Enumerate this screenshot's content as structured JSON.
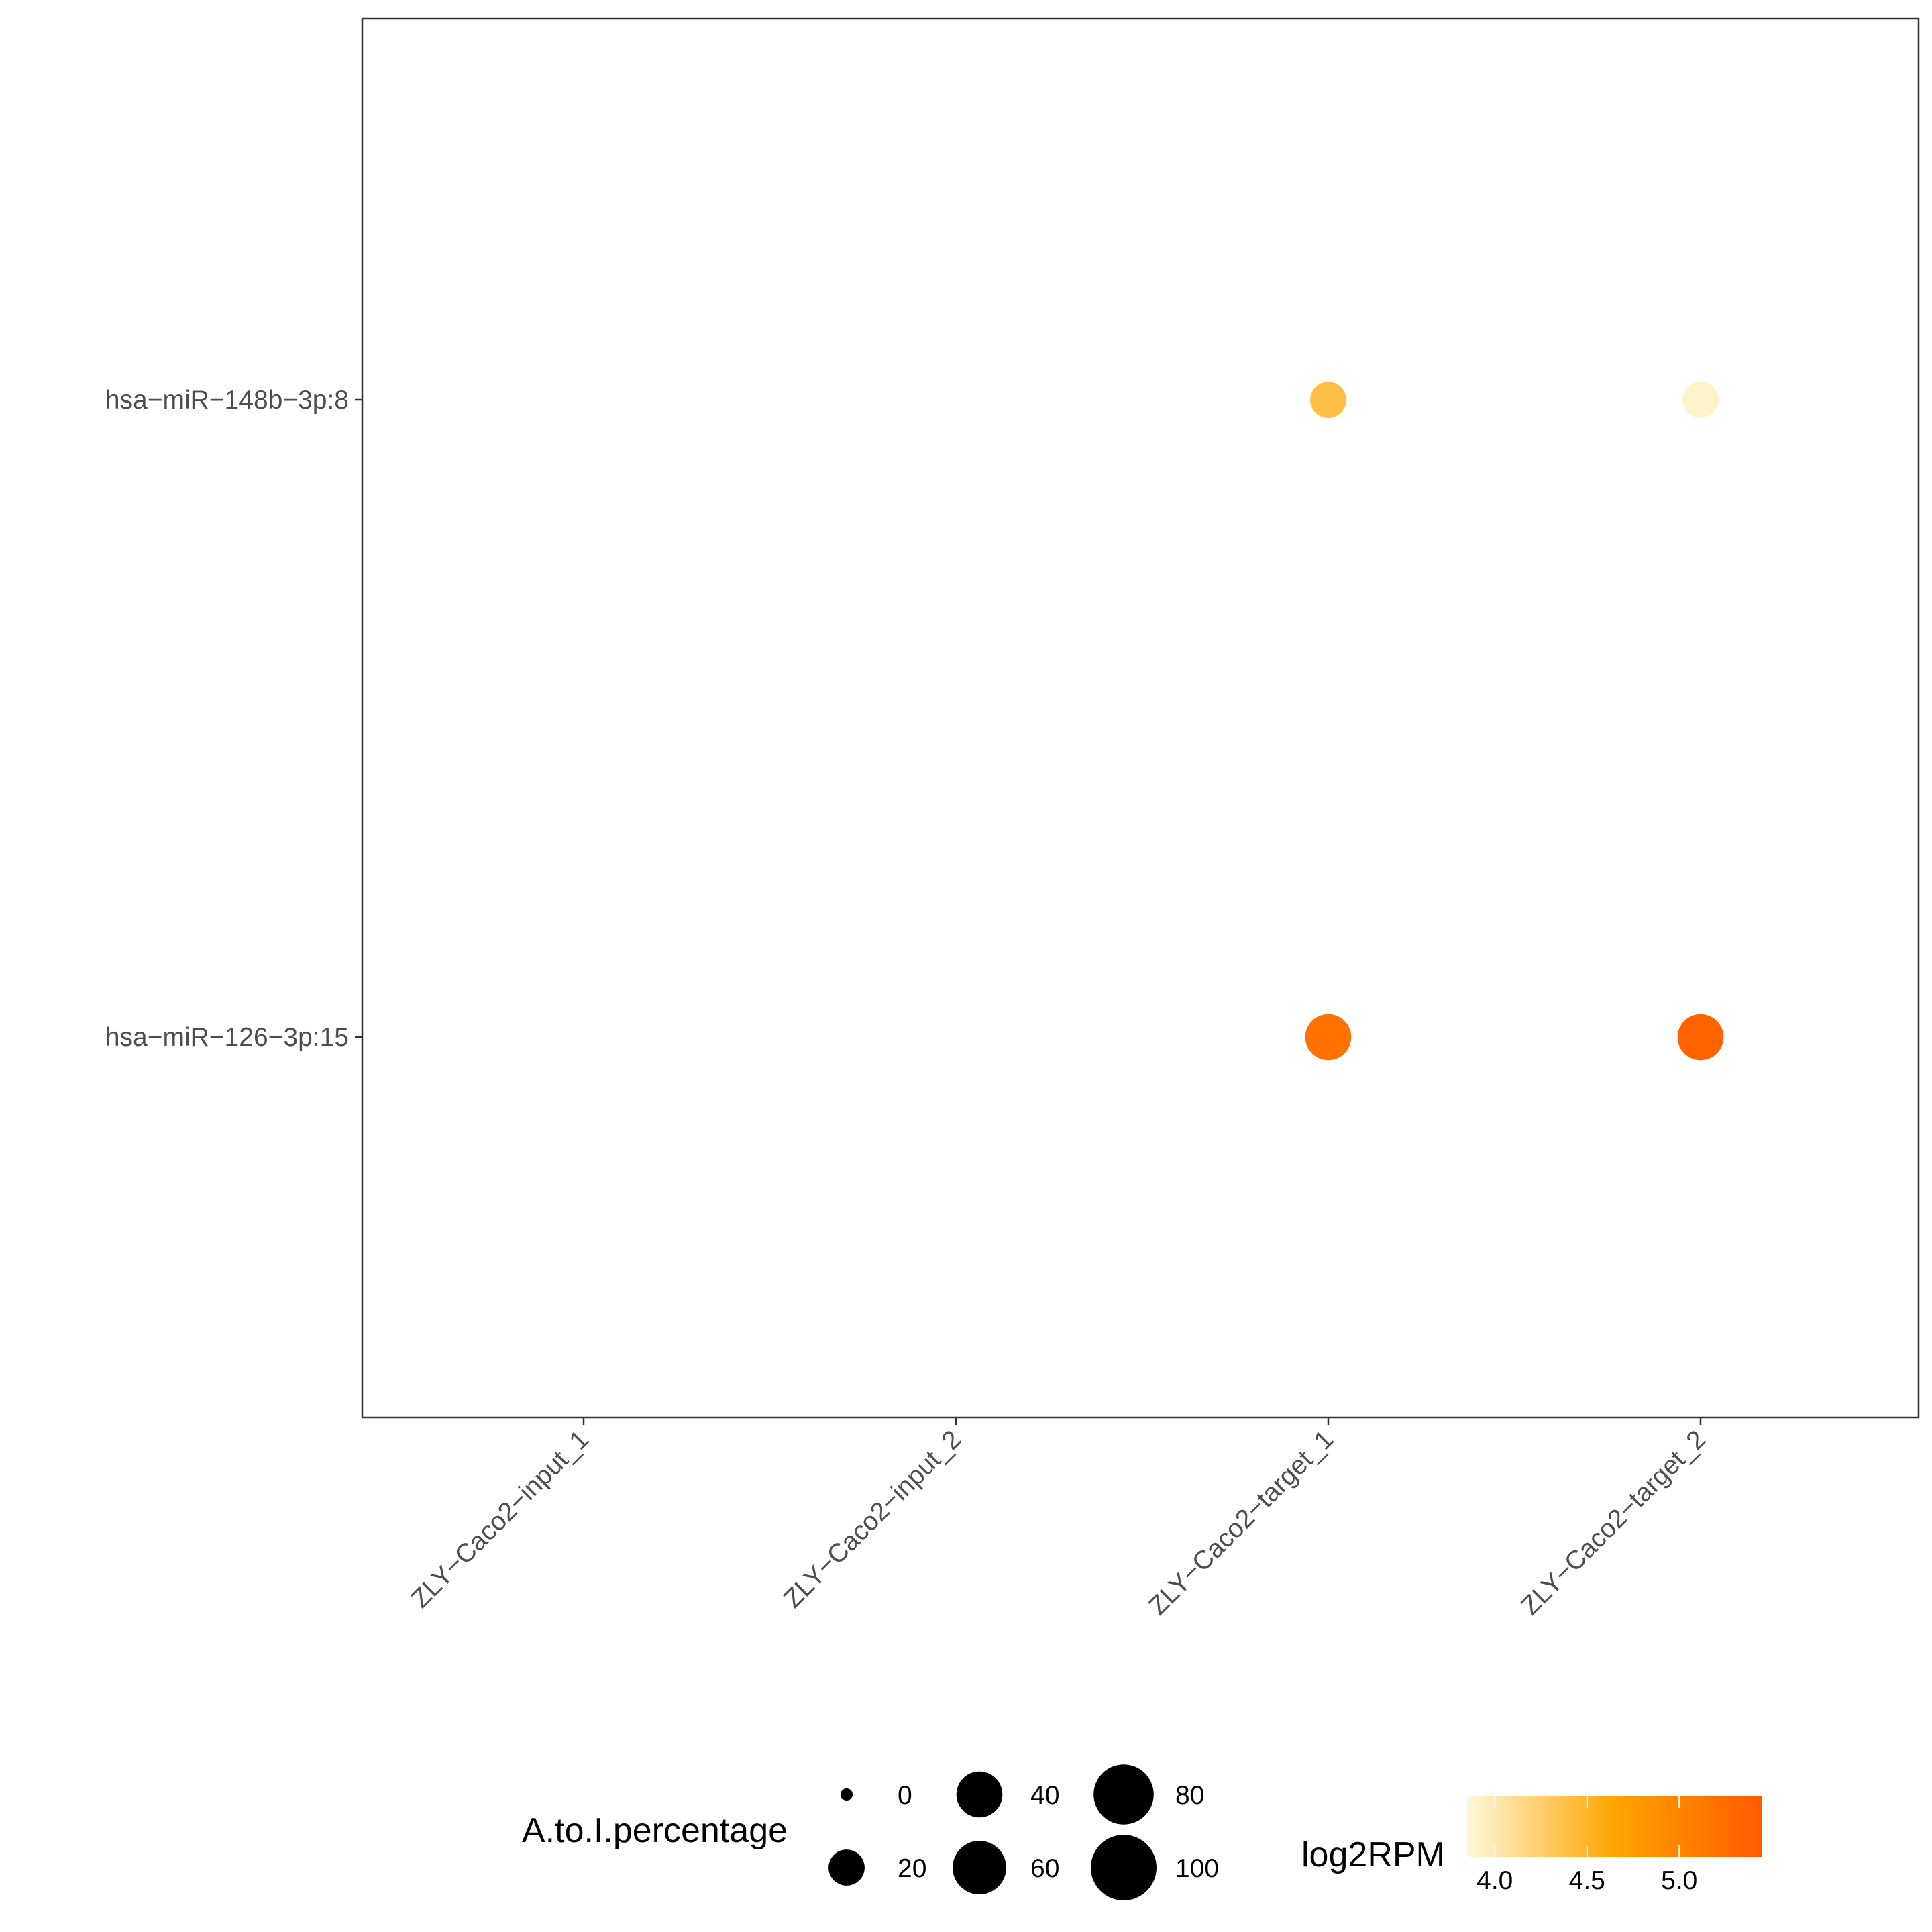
{
  "chart_data": {
    "type": "scatter",
    "x_categories": [
      "ZLY−Caco2−input_1",
      "ZLY−Caco2−input_2",
      "ZLY−Caco2−target_1",
      "ZLY−Caco2−target_2"
    ],
    "y_categories": [
      "hsa−miR−148b−3p:8",
      "hsa−miR−126−3p:15"
    ],
    "points": [
      {
        "x": "ZLY−Caco2−target_1",
        "y": "hsa−miR−148b−3p:8",
        "A_to_I_percentage": 20,
        "log2RPM": 4.4
      },
      {
        "x": "ZLY−Caco2−target_2",
        "y": "hsa−miR−148b−3p:8",
        "A_to_I_percentage": 20,
        "log2RPM": 3.9
      },
      {
        "x": "ZLY−Caco2−target_1",
        "y": "hsa−miR−126−3p:15",
        "A_to_I_percentage": 40,
        "log2RPM": 5.2
      },
      {
        "x": "ZLY−Caco2−target_2",
        "y": "hsa−miR−126−3p:15",
        "A_to_I_percentage": 40,
        "log2RPM": 5.35
      }
    ],
    "size_legend": {
      "title": "A.to.I.percentage",
      "breaks": [
        0,
        20,
        40,
        60,
        80,
        100
      ],
      "labels": [
        "0",
        "20",
        "40",
        "60",
        "80",
        "100"
      ]
    },
    "color_legend": {
      "title": "log2RPM",
      "range": [
        3.85,
        5.45
      ],
      "breaks": [
        4.0,
        4.5,
        5.0
      ],
      "labels": [
        "4.0",
        "4.5",
        "5.0"
      ],
      "colors": [
        "#fff8dc",
        "#ffa500",
        "#ff5a00"
      ]
    },
    "xlabel": "",
    "ylabel": "",
    "grid": false,
    "legend_position": "bottom"
  }
}
